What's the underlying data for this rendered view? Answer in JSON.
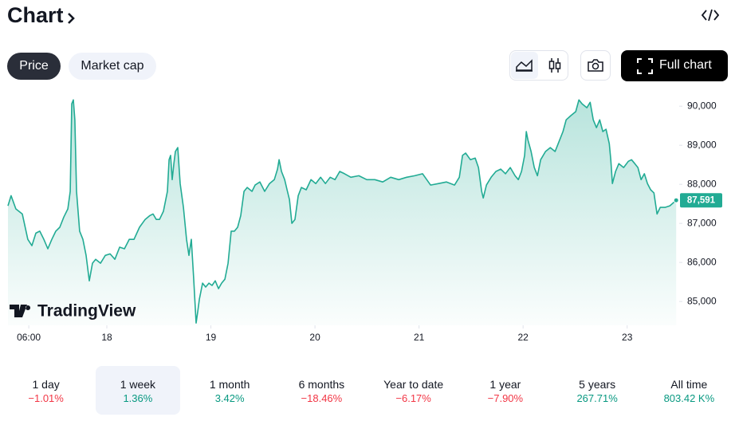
{
  "header": {
    "title": "Chart"
  },
  "tabs": [
    "Price",
    "Market cap"
  ],
  "full_chart": "Full chart",
  "watermark": "TradingView",
  "chart_data": {
    "type": "line",
    "color": "#22ab94",
    "x": [
      17.05,
      17.08,
      17.126,
      17.188,
      17.241,
      17.28,
      17.318,
      17.356,
      17.395,
      17.433,
      17.471,
      17.51,
      17.548,
      17.586,
      17.625,
      17.648,
      17.663,
      17.678,
      17.693,
      17.709,
      17.739,
      17.77,
      17.801,
      17.831,
      17.862,
      17.893,
      17.939,
      17.985,
      18.031,
      18.077,
      18.123,
      18.169,
      18.215,
      18.261,
      18.314,
      18.368,
      18.414,
      18.444,
      18.475,
      18.506,
      18.544,
      18.582,
      18.598,
      18.613,
      18.628,
      18.644,
      18.659,
      18.682,
      18.705,
      18.736,
      18.766,
      18.789,
      18.812,
      18.835,
      18.858,
      18.874,
      18.889,
      18.92,
      18.95,
      18.981,
      19.011,
      19.042,
      19.073,
      19.103,
      19.134,
      19.165,
      19.195,
      19.226,
      19.257,
      19.287,
      19.318,
      19.349,
      19.395,
      19.425,
      19.471,
      19.517,
      19.563,
      19.609,
      19.64,
      19.655,
      19.678,
      19.709,
      19.732,
      19.755,
      19.778,
      19.808,
      19.839,
      19.87,
      19.916,
      19.962,
      20.008,
      20.054,
      20.1,
      20.146,
      20.192,
      20.238,
      20.284,
      20.345,
      20.421,
      20.498,
      20.575,
      20.651,
      20.728,
      20.805,
      20.881,
      20.958,
      21.034,
      21.111,
      21.188,
      21.264,
      21.341,
      21.387,
      21.418,
      21.448,
      21.494,
      21.54,
      21.571,
      21.602,
      21.617,
      21.648,
      21.693,
      21.739,
      21.785,
      21.831,
      21.877,
      21.923,
      21.954,
      21.985,
      22.015,
      22.031,
      22.046,
      22.077,
      22.107,
      22.138,
      22.169,
      22.215,
      22.261,
      22.307,
      22.337,
      22.383,
      22.414,
      22.46,
      22.506,
      22.536,
      22.567,
      22.613,
      22.644,
      22.674,
      22.705,
      22.736,
      22.766,
      22.797,
      22.828,
      22.843,
      22.858,
      22.889,
      22.92,
      22.966,
      23.011,
      23.042,
      23.073,
      23.103,
      23.134,
      23.165,
      23.195,
      23.226,
      23.257,
      23.287,
      23.318,
      23.364,
      23.41,
      23.471
    ],
    "values": [
      87450,
      87710,
      87370,
      87240,
      86590,
      86430,
      86750,
      86800,
      86590,
      86350,
      86590,
      86800,
      86900,
      87160,
      87370,
      87820,
      90060,
      90160,
      89650,
      87820,
      86800,
      86590,
      86180,
      85530,
      85980,
      86080,
      85980,
      86180,
      86220,
      86080,
      86390,
      86350,
      86590,
      86590,
      86900,
      87100,
      87200,
      87240,
      87100,
      87100,
      87310,
      87820,
      88630,
      88740,
      88120,
      88530,
      88840,
      88940,
      88020,
      87410,
      86590,
      86180,
      86590,
      85570,
      84450,
      84750,
      85060,
      85470,
      85370,
      85470,
      85410,
      85530,
      85330,
      85470,
      85570,
      85980,
      86800,
      86800,
      86900,
      87200,
      87820,
      87920,
      87820,
      87980,
      88060,
      87820,
      88020,
      88120,
      88390,
      88630,
      88330,
      88120,
      87860,
      87610,
      87000,
      87100,
      87710,
      87920,
      87860,
      88120,
      88020,
      88180,
      88020,
      88180,
      88120,
      88330,
      88270,
      88180,
      88220,
      88120,
      88120,
      88060,
      88180,
      88120,
      88180,
      88220,
      88270,
      87980,
      88020,
      88060,
      87980,
      88180,
      88740,
      88800,
      88630,
      88670,
      88430,
      87820,
      87650,
      87980,
      88180,
      88330,
      88390,
      88270,
      88430,
      88220,
      88120,
      88330,
      88740,
      89350,
      89140,
      88840,
      88430,
      88220,
      88630,
      88840,
      88940,
      88840,
      89040,
      89350,
      89650,
      89760,
      89860,
      90160,
      90060,
      89960,
      90100,
      89650,
      89450,
      89650,
      89350,
      89410,
      89040,
      88630,
      88020,
      88330,
      88530,
      88430,
      88590,
      88630,
      88530,
      88430,
      88120,
      88270,
      88020,
      87860,
      87780,
      87240,
      87410,
      87410,
      87450,
      87591
    ],
    "xlim": [
      17.05,
      23.5
    ],
    "ylim": [
      84390,
      90310
    ],
    "xticks": [
      {
        "value": 17.25,
        "label": "06:00"
      },
      18,
      19,
      20,
      21,
      22,
      23
    ],
    "yticks": [
      {
        "value": 85000,
        "label": "85,000"
      },
      {
        "value": 86000,
        "label": "86,000"
      },
      {
        "value": 87000,
        "label": "87,000"
      },
      {
        "value": 88000,
        "label": "88,000"
      },
      {
        "value": 89000,
        "label": "89,000"
      },
      {
        "value": 90000,
        "label": "90,000"
      }
    ],
    "price_tag": {
      "value": 87591,
      "label": "87,591"
    }
  },
  "periods": [
    {
      "label": "1 day",
      "change": "−1.01%",
      "color": "#f23645"
    },
    {
      "label": "1 week",
      "change": "1.36%",
      "color": "#089981"
    },
    {
      "label": "1 month",
      "change": "3.42%",
      "color": "#089981"
    },
    {
      "label": "6 months",
      "change": "−18.46%",
      "color": "#f23645"
    },
    {
      "label": "Year to date",
      "change": "−6.17%",
      "color": "#f23645"
    },
    {
      "label": "1 year",
      "change": "−7.90%",
      "color": "#f23645"
    },
    {
      "label": "5 years",
      "change": "267.71%",
      "color": "#089981"
    },
    {
      "label": "All time",
      "change": "803.42 K%",
      "color": "#089981"
    }
  ],
  "selected_period": 1
}
